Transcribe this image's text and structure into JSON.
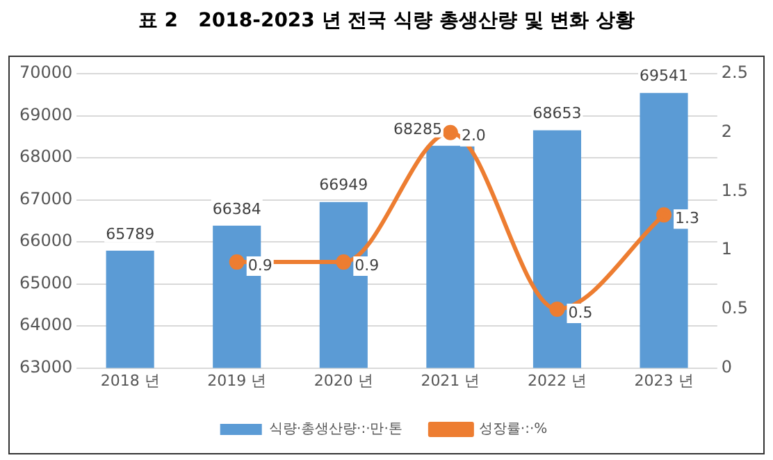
{
  "chart_data": {
    "type": "bar",
    "title": "표 2   2018-2023 년 전국 식량 총생산량 및 변화 상황",
    "categories": [
      "2018 년",
      "2019 년",
      "2020 년",
      "2021 년",
      "2022 년",
      "2023 년"
    ],
    "series": [
      {
        "name": "식량·총생산량·:·만·톤",
        "color": "#5b9bd5",
        "values": [
          65789,
          66384,
          66949,
          68285,
          68653,
          69541
        ],
        "value_labels": [
          "65789",
          "66384",
          "66949",
          "68285",
          "68653",
          "69541"
        ]
      },
      {
        "name": "성장률·:·%",
        "type": "line",
        "axis": "y2",
        "color": "#ed7d31",
        "marker": "circle",
        "values": [
          null,
          0.9,
          0.9,
          2.0,
          0.5,
          1.3
        ],
        "value_labels": [
          null,
          "0.9",
          "0.9",
          "2.0",
          "0.5",
          "1.3"
        ]
      }
    ],
    "ylim": [
      63000,
      70000
    ],
    "yticks": [
      63000,
      64000,
      65000,
      66000,
      67000,
      68000,
      69000,
      70000
    ],
    "y2lim": [
      0,
      2.5
    ],
    "y2ticks": [
      0,
      0.5,
      1,
      1.5,
      2,
      2.5
    ],
    "grid": "y",
    "legend": "bottom"
  }
}
